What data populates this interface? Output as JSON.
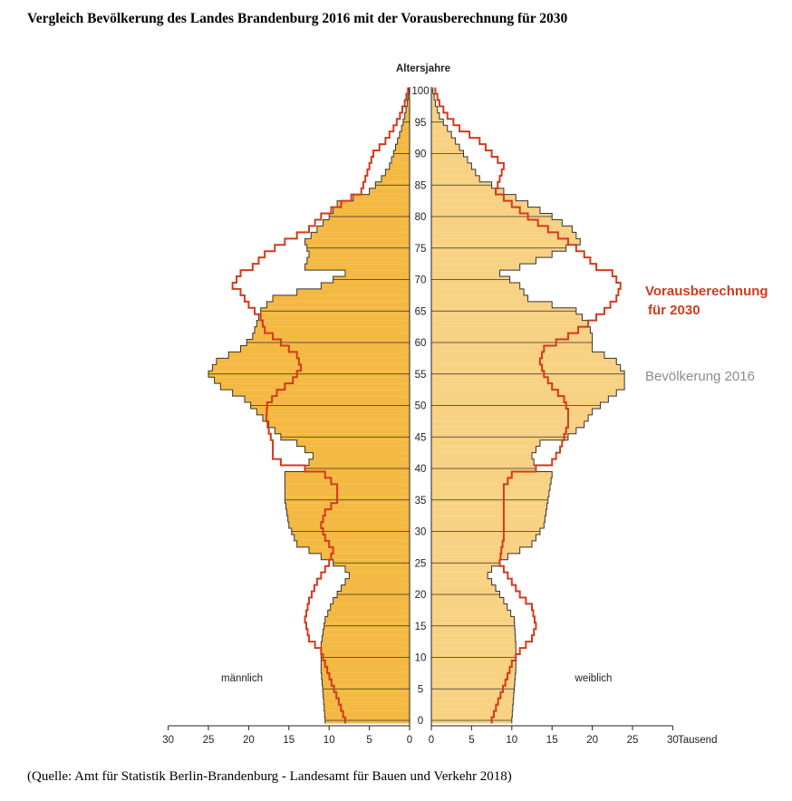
{
  "title": "Vergleich Bevölkerung des Landes Brandenburg 2016 mit der Vorausberechnung für 2030",
  "source": "(Quelle: Amt für Statistik Berlin-Brandenburg - Landesamt für Bauen und Verkehr 2018)",
  "colors": {
    "male_2016_fill": "#f4b942",
    "female_2016_fill": "#f8d182",
    "bar_outline": "#333333",
    "forecast_2030": "#d23a1e",
    "legend_2016": "#8c8c8c"
  },
  "chart_data": {
    "type": "population pyramid (horizontal bars + step lines)",
    "y_axis_label": "Altersjahre",
    "x_axis_unit": "Tausend",
    "x_ticks": [
      30,
      25,
      20,
      15,
      10,
      5,
      0
    ],
    "age_ticks": [
      0,
      5,
      10,
      15,
      20,
      25,
      30,
      35,
      40,
      45,
      50,
      55,
      60,
      65,
      70,
      75,
      80,
      85,
      90,
      95,
      100
    ],
    "xlim": [
      0,
      30
    ],
    "ylim": [
      0,
      100
    ],
    "label_male": "männlich",
    "label_female": "weiblich",
    "series": [
      {
        "name": "Bevölkerung 2016",
        "anchors_male": [
          [
            0,
            10.5
          ],
          [
            5,
            10.8
          ],
          [
            8,
            11
          ],
          [
            12,
            11
          ],
          [
            16,
            10.5
          ],
          [
            19,
            9.5
          ],
          [
            21,
            8.5
          ],
          [
            23,
            7.5
          ],
          [
            24,
            8
          ],
          [
            26,
            11
          ],
          [
            28,
            14
          ],
          [
            31,
            15
          ],
          [
            35,
            15.5
          ],
          [
            39,
            15.5
          ],
          [
            40,
            13
          ],
          [
            42,
            12
          ],
          [
            44,
            14
          ],
          [
            45,
            16
          ],
          [
            47,
            17.5
          ],
          [
            49,
            19
          ],
          [
            51,
            20.5
          ],
          [
            53,
            23.5
          ],
          [
            55,
            25
          ],
          [
            57,
            24
          ],
          [
            59,
            21
          ],
          [
            61,
            19.5
          ],
          [
            63,
            19
          ],
          [
            65,
            18.5
          ],
          [
            67,
            17
          ],
          [
            69,
            11
          ],
          [
            71,
            8
          ],
          [
            72,
            13
          ],
          [
            74,
            12.5
          ],
          [
            76,
            13
          ],
          [
            78,
            11.5
          ],
          [
            80,
            10
          ],
          [
            82,
            9
          ],
          [
            84,
            5
          ],
          [
            86,
            3.5
          ],
          [
            88,
            2.5
          ],
          [
            90,
            2
          ],
          [
            92,
            1.5
          ],
          [
            94,
            1
          ],
          [
            96,
            0.6
          ],
          [
            98,
            0.3
          ],
          [
            100,
            0.1
          ]
        ],
        "anchors_female": [
          [
            0,
            10
          ],
          [
            5,
            10.3
          ],
          [
            8,
            10.5
          ],
          [
            12,
            10.5
          ],
          [
            16,
            10.3
          ],
          [
            19,
            9
          ],
          [
            21,
            8
          ],
          [
            23,
            7
          ],
          [
            24,
            7.5
          ],
          [
            26,
            9.5
          ],
          [
            28,
            12.5
          ],
          [
            31,
            14
          ],
          [
            35,
            14.5
          ],
          [
            39,
            15
          ],
          [
            40,
            13
          ],
          [
            42,
            12.5
          ],
          [
            44,
            13.5
          ],
          [
            45,
            17
          ],
          [
            47,
            19
          ],
          [
            49,
            20
          ],
          [
            51,
            22
          ],
          [
            53,
            24
          ],
          [
            55,
            24
          ],
          [
            57,
            23
          ],
          [
            59,
            20
          ],
          [
            61,
            20
          ],
          [
            63,
            19.5
          ],
          [
            65,
            18
          ],
          [
            67,
            12
          ],
          [
            69,
            11
          ],
          [
            71,
            8.5
          ],
          [
            72,
            11
          ],
          [
            74,
            15
          ],
          [
            76,
            18.5
          ],
          [
            78,
            17.5
          ],
          [
            80,
            15
          ],
          [
            82,
            12
          ],
          [
            84,
            9
          ],
          [
            86,
            6
          ],
          [
            88,
            5
          ],
          [
            90,
            4
          ],
          [
            92,
            3
          ],
          [
            94,
            2
          ],
          [
            96,
            1
          ],
          [
            98,
            0.5
          ],
          [
            100,
            0.2
          ]
        ]
      },
      {
        "name": "Vorausberechnung für 2030",
        "anchors_male": [
          [
            0,
            8
          ],
          [
            3,
            8.8
          ],
          [
            6,
            9.7
          ],
          [
            9,
            10.5
          ],
          [
            11,
            11
          ],
          [
            13,
            12.5
          ],
          [
            16,
            13
          ],
          [
            19,
            12.5
          ],
          [
            22,
            11.5
          ],
          [
            25,
            10
          ],
          [
            27,
            9.5
          ],
          [
            29,
            10.5
          ],
          [
            31,
            11
          ],
          [
            33,
            10.5
          ],
          [
            35,
            9
          ],
          [
            37,
            9
          ],
          [
            39,
            10.5
          ],
          [
            40,
            13
          ],
          [
            41,
            16
          ],
          [
            42,
            17
          ],
          [
            44,
            17
          ],
          [
            46,
            17.5
          ],
          [
            48,
            17.8
          ],
          [
            50,
            17.7
          ],
          [
            52,
            16.5
          ],
          [
            54,
            14.5
          ],
          [
            56,
            13.5
          ],
          [
            58,
            14
          ],
          [
            60,
            16
          ],
          [
            62,
            18
          ],
          [
            64,
            18.5
          ],
          [
            66,
            20
          ],
          [
            68,
            21
          ],
          [
            69,
            22
          ],
          [
            71,
            21
          ],
          [
            72,
            19.5
          ],
          [
            74,
            18
          ],
          [
            76,
            15.5
          ],
          [
            78,
            12.5
          ],
          [
            80,
            11
          ],
          [
            82,
            8.5
          ],
          [
            84,
            6
          ],
          [
            86,
            5.5
          ],
          [
            88,
            5
          ],
          [
            90,
            4.5
          ],
          [
            92,
            3
          ],
          [
            94,
            2
          ],
          [
            96,
            1.2
          ],
          [
            98,
            0.6
          ],
          [
            100,
            0.2
          ]
        ],
        "anchors_female": [
          [
            0,
            7.5
          ],
          [
            3,
            8.3
          ],
          [
            6,
            9.2
          ],
          [
            9,
            10
          ],
          [
            11,
            11
          ],
          [
            13,
            12.5
          ],
          [
            15,
            13
          ],
          [
            18,
            12.5
          ],
          [
            20,
            11
          ],
          [
            22,
            10
          ],
          [
            25,
            8.5
          ],
          [
            27,
            8.7
          ],
          [
            29,
            9
          ],
          [
            31,
            9
          ],
          [
            33,
            9
          ],
          [
            35,
            9
          ],
          [
            37,
            9
          ],
          [
            39,
            10
          ],
          [
            40,
            13
          ],
          [
            41,
            15
          ],
          [
            43,
            16
          ],
          [
            45,
            16.5
          ],
          [
            47,
            17
          ],
          [
            49,
            17
          ],
          [
            51,
            16.5
          ],
          [
            53,
            15
          ],
          [
            55,
            14
          ],
          [
            57,
            13.5
          ],
          [
            59,
            14
          ],
          [
            61,
            17
          ],
          [
            63,
            19.5
          ],
          [
            65,
            21.5
          ],
          [
            67,
            23
          ],
          [
            69,
            23.5
          ],
          [
            71,
            22.5
          ],
          [
            72,
            20.5
          ],
          [
            74,
            19
          ],
          [
            76,
            17
          ],
          [
            78,
            14.5
          ],
          [
            80,
            12
          ],
          [
            82,
            10
          ],
          [
            84,
            8
          ],
          [
            86,
            8.5
          ],
          [
            88,
            9
          ],
          [
            90,
            7.5
          ],
          [
            92,
            6
          ],
          [
            94,
            3.5
          ],
          [
            96,
            2
          ],
          [
            98,
            1
          ],
          [
            100,
            0.5
          ]
        ]
      }
    ]
  },
  "legend": {
    "forecast_line1": "Vorausberechnung",
    "forecast_line2": "für 2030",
    "base": "Bevölkerung 2016"
  }
}
